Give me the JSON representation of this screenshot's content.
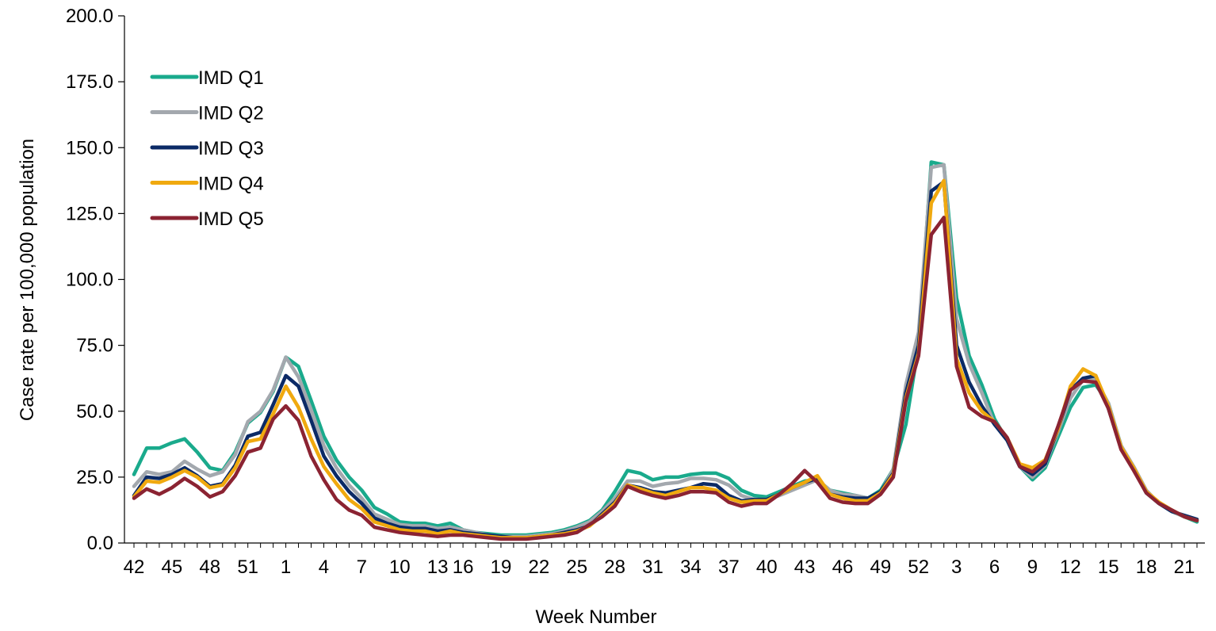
{
  "chart_data": {
    "type": "line",
    "title": "",
    "xlabel": "Week Number",
    "ylabel": "Case rate per 100,000 population",
    "ylim": [
      0,
      200
    ],
    "yticks": [
      "0.0",
      "25.0",
      "50.0",
      "75.0",
      "100.0",
      "125.0",
      "150.0",
      "175.0",
      "200.0"
    ],
    "grid": false,
    "legend_position": "top-left",
    "categories": [
      "42",
      "43",
      "44",
      "45",
      "46",
      "47",
      "48",
      "49",
      "50",
      "51",
      "52",
      "53",
      "1",
      "2",
      "3",
      "4",
      "5",
      "6",
      "7",
      "8",
      "9",
      "10",
      "11",
      "12",
      "13",
      "14",
      "15",
      "16",
      "17",
      "18",
      "19",
      "20",
      "21",
      "22",
      "23",
      "24",
      "25",
      "26",
      "27",
      "28",
      "29",
      "30",
      "31",
      "32",
      "33",
      "34",
      "35",
      "36",
      "37",
      "38",
      "39",
      "40",
      "41",
      "42",
      "43",
      "44",
      "45",
      "46",
      "47",
      "48",
      "49",
      "50",
      "51",
      "52",
      "1",
      "2",
      "3",
      "4",
      "5",
      "6",
      "7",
      "8",
      "9",
      "10",
      "11",
      "12",
      "13",
      "14",
      "15",
      "16",
      "17",
      "18",
      "19",
      "20",
      "21"
    ],
    "x_tick_labels": [
      "42",
      "45",
      "48",
      "51",
      "1",
      "4",
      "7",
      "10",
      "13",
      "16",
      "19",
      "22",
      "25",
      "28",
      "31",
      "34",
      "37",
      "40",
      "43",
      "46",
      "49",
      "52",
      "3",
      "6",
      "9",
      "12",
      "15",
      "18",
      "21"
    ],
    "x_tick_indices": [
      0,
      3,
      6,
      9,
      12,
      15,
      18,
      21,
      24,
      26,
      29,
      32,
      35,
      38,
      41,
      44,
      47,
      50,
      53,
      56,
      59,
      62,
      65,
      68,
      71,
      74,
      77,
      80,
      83
    ],
    "series": [
      {
        "name": "IMD Q1",
        "color": "#1aaa8c",
        "values": [
          26,
          36,
          36,
          38,
          39.5,
          34.5,
          28.5,
          27.5,
          34.5,
          45.5,
          49.5,
          57.5,
          70.5,
          67,
          54,
          40.5,
          31.5,
          25,
          20,
          13.5,
          11,
          8,
          7.5,
          7.5,
          6.5,
          7.5,
          5,
          4,
          3.5,
          3,
          3,
          3,
          3.5,
          4,
          5,
          6.5,
          8.5,
          12.5,
          19.5,
          27.5,
          26.5,
          24,
          25,
          25,
          26,
          26.5,
          26.5,
          24.5,
          20,
          18,
          17.5,
          19.5,
          21.5,
          23.5,
          24,
          20,
          19,
          18,
          17,
          20,
          28,
          45,
          75,
          144.5,
          143.5,
          93,
          71,
          60,
          47,
          39,
          29,
          24,
          28.5,
          40,
          51.5,
          59,
          60,
          53,
          37,
          28,
          19,
          15,
          12,
          10,
          8
        ]
      },
      {
        "name": "IMD Q2",
        "color": "#a3a8ae",
        "values": [
          21.5,
          27,
          26,
          27,
          31,
          28,
          25.5,
          27,
          33.5,
          46,
          50,
          58,
          70.5,
          63,
          50.5,
          37,
          28.5,
          22,
          17,
          11,
          9,
          7,
          6.5,
          6.5,
          5.5,
          6,
          5,
          4,
          3,
          2.5,
          2.5,
          2.5,
          3,
          3.5,
          4.5,
          6,
          8,
          12,
          17,
          23.5,
          23.5,
          21.5,
          22.5,
          23,
          24.5,
          24.5,
          24,
          22,
          18,
          16.5,
          16.5,
          18,
          20,
          22,
          24,
          20,
          18.5,
          18,
          17,
          19,
          28,
          60,
          80,
          142.5,
          143.5,
          85,
          68,
          57,
          45,
          39,
          29,
          25,
          29.5,
          42,
          55,
          62,
          62,
          53,
          37,
          29,
          20,
          15,
          12,
          10,
          8.5
        ]
      },
      {
        "name": "IMD Q3",
        "color": "#0b2a66",
        "values": [
          18,
          25,
          24.5,
          26,
          28.5,
          25.5,
          21.5,
          22.5,
          29.5,
          40.5,
          42,
          52.5,
          63.5,
          59.5,
          46.5,
          33,
          25.5,
          19.5,
          15,
          9.5,
          7.5,
          6,
          5.5,
          5.5,
          4.5,
          5,
          4,
          3.5,
          3,
          2.5,
          2,
          2,
          2.5,
          3,
          4,
          5,
          6.5,
          11,
          15.5,
          22,
          21,
          19.5,
          19,
          20,
          21,
          22.5,
          22,
          18,
          16,
          16.5,
          16.5,
          18.5,
          21,
          23,
          24.5,
          18.5,
          17.5,
          17,
          17,
          19.5,
          26.5,
          57,
          75,
          133.5,
          137,
          75,
          61,
          52,
          45,
          39,
          29,
          26,
          30,
          43,
          58,
          62.5,
          63.5,
          51,
          36,
          28,
          19,
          15,
          12,
          10.5,
          9
        ]
      },
      {
        "name": "IMD Q4",
        "color": "#f0a90f",
        "values": [
          17.5,
          23.5,
          23,
          25,
          27.5,
          25,
          21,
          22,
          28.5,
          38.5,
          39.5,
          49,
          59.5,
          51.5,
          39.5,
          29,
          22.5,
          16.5,
          13,
          8,
          6.5,
          5,
          4.5,
          4.5,
          3.5,
          4.5,
          3.5,
          3,
          2.5,
          2,
          2,
          2,
          2.5,
          3,
          3.5,
          4.5,
          6.5,
          10.5,
          15,
          22,
          20.5,
          19,
          18,
          19.5,
          21,
          21,
          20,
          17,
          15.5,
          16,
          16,
          18.5,
          21,
          23,
          25.5,
          18.5,
          17,
          16,
          16,
          19,
          26,
          55,
          72,
          129,
          137.5,
          70,
          57,
          50,
          46,
          40,
          30,
          28.5,
          31.5,
          43,
          59.5,
          66,
          63.5,
          52,
          36.5,
          28.5,
          19.5,
          15.5,
          12.5,
          10,
          8.5
        ]
      },
      {
        "name": "IMD Q5",
        "color": "#8b2332",
        "values": [
          17,
          20.5,
          18.5,
          21,
          24.5,
          21.5,
          17.5,
          19.5,
          25.5,
          34.5,
          36,
          47,
          52,
          46.5,
          33,
          24,
          16.5,
          12.5,
          10.5,
          6,
          5,
          4,
          3.5,
          3,
          2.5,
          3,
          3,
          2.5,
          2,
          1.5,
          1.5,
          1.5,
          2,
          2.5,
          3,
          4,
          7,
          10,
          14,
          21.5,
          19.5,
          18,
          17,
          18,
          19.5,
          19.5,
          19,
          15.5,
          14,
          15,
          15,
          18.5,
          22.5,
          27.5,
          23,
          17,
          15.5,
          15,
          15,
          18.5,
          25,
          54,
          71,
          117,
          123.5,
          67,
          51.5,
          48,
          46,
          40,
          29,
          27,
          31,
          44,
          58,
          61.5,
          61,
          51,
          35.5,
          27.5,
          19,
          15,
          12.5,
          10,
          8.5
        ]
      }
    ]
  }
}
